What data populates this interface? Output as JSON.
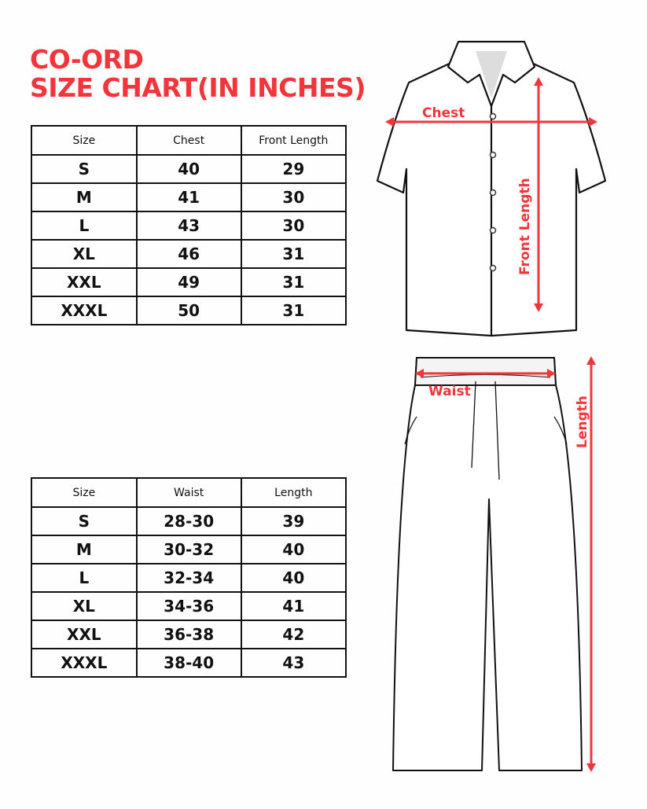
{
  "title": {
    "line1": "CO-ORD",
    "line2": "SIZE CHART(IN INCHES)"
  },
  "shirt_table": {
    "headers": [
      "Size",
      "Chest",
      "Front Length"
    ],
    "rows": [
      [
        "S",
        "40",
        "29"
      ],
      [
        "M",
        "41",
        "30"
      ],
      [
        "L",
        "43",
        "30"
      ],
      [
        "XL",
        "46",
        "31"
      ],
      [
        "XXL",
        "49",
        "31"
      ],
      [
        "XXXL",
        "50",
        "31"
      ]
    ]
  },
  "pants_table": {
    "headers": [
      "Size",
      "Waist",
      "Length"
    ],
    "rows": [
      [
        "S",
        "28-30",
        "39"
      ],
      [
        "M",
        "30-32",
        "40"
      ],
      [
        "L",
        "32-34",
        "40"
      ],
      [
        "XL",
        "34-36",
        "41"
      ],
      [
        "XXL",
        "36-38",
        "42"
      ],
      [
        "XXXL",
        "38-40",
        "43"
      ]
    ]
  },
  "shirt_diagram": {
    "chest_label": "Chest",
    "length_label": "Front Length"
  },
  "pants_diagram": {
    "waist_label": "Waist",
    "length_label": "Length"
  },
  "colors": {
    "accent": "#f2353b",
    "line": "#111111"
  }
}
